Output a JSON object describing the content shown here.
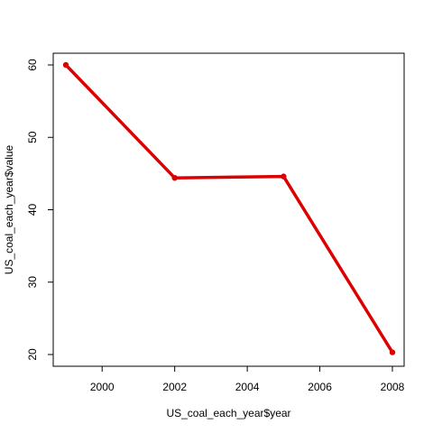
{
  "chart_data": {
    "type": "line",
    "xlabel": "US_coal_each_year$year",
    "ylabel": "US_coal_each_year$value",
    "xlim": [
      1999,
      2008
    ],
    "ylim": [
      20,
      60
    ],
    "x_ticks": [
      2000,
      2002,
      2004,
      2006,
      2008
    ],
    "y_ticks": [
      20,
      30,
      40,
      50,
      60
    ],
    "grid": false,
    "series": [
      {
        "x": [
          1999,
          2002,
          2005,
          2008
        ],
        "values": [
          60.0,
          44.4,
          44.6,
          20.3
        ],
        "color": "#dd0000"
      }
    ]
  }
}
